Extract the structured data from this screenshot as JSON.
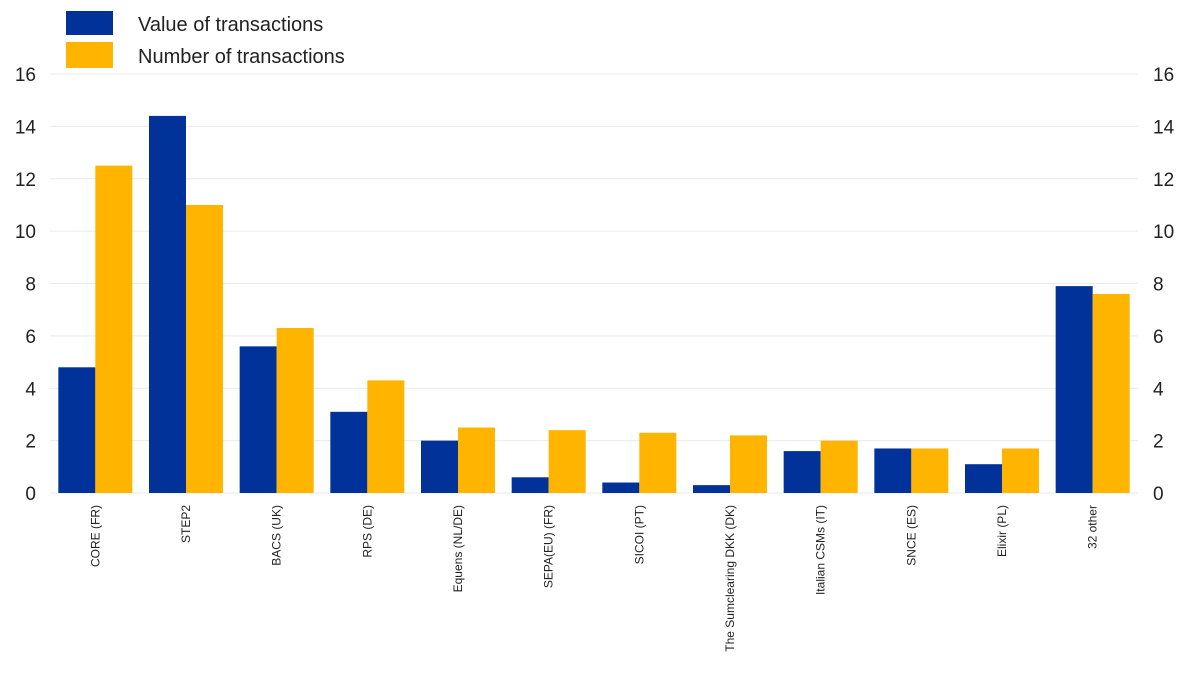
{
  "chart_data": {
    "type": "bar",
    "categories": [
      "CORE (FR)",
      "STEP2",
      "BACS (UK)",
      "RPS (DE)",
      "Equens (NL/DE)",
      "SEPA(EU) (FR)",
      "SICOI (PT)",
      "The Sumclearing DKK (DK)",
      "Italian CSMs (IT)",
      "SNCE (ES)",
      "Elixir (PL)",
      "32 other"
    ],
    "series": [
      {
        "name": "Value of transactions",
        "color": "#003299",
        "values": [
          4.8,
          14.4,
          5.6,
          3.1,
          2.0,
          0.6,
          0.4,
          0.3,
          1.6,
          1.7,
          1.1,
          7.9
        ]
      },
      {
        "name": "Number of transactions",
        "color": "#FFB400",
        "values": [
          12.5,
          11.0,
          6.3,
          4.3,
          2.5,
          2.4,
          2.3,
          2.2,
          2.0,
          1.7,
          1.7,
          7.6
        ]
      }
    ],
    "ylim": [
      0,
      16
    ],
    "yticks": [
      "0",
      "2",
      "4",
      "6",
      "8",
      "10",
      "12",
      "14",
      "16"
    ],
    "secondary_yticks": [
      "0",
      "2",
      "4",
      "6",
      "8",
      "10",
      "12",
      "14",
      "16"
    ],
    "grid": true,
    "legend_position": "top-left",
    "title": "",
    "xlabel": "",
    "ylabel": ""
  }
}
